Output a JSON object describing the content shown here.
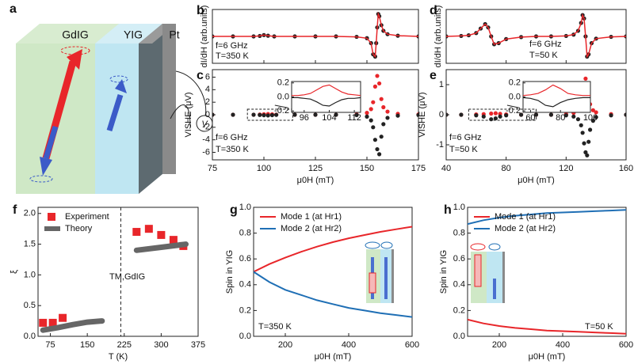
{
  "diagram": {
    "label": "a",
    "layers": [
      "GdIG",
      "YIG",
      "Pt"
    ],
    "meter": "V"
  },
  "chart_data": [
    {
      "type": "line",
      "label": "b",
      "ylabel": "dI/dH (arb.units)",
      "annotations": [
        "f=6 GHz",
        "T=350 K"
      ],
      "xlim": [
        75,
        175
      ],
      "xticks": [
        75,
        100,
        125,
        150,
        175
      ],
      "show_xtick_labels": false,
      "ylim": [
        -1.2,
        1.2
      ],
      "x": [
        75,
        85,
        95,
        98,
        100,
        102,
        105,
        115,
        125,
        135,
        145,
        150,
        152,
        153,
        154,
        154.5,
        155,
        155.5,
        156,
        157,
        158,
        160,
        165,
        175
      ],
      "series": [
        {
          "color": "#222222",
          "line_color": "#e8262a",
          "marker": "circle",
          "values": [
            0,
            0,
            0,
            0.02,
            0.06,
            0.03,
            0,
            0,
            0,
            0,
            -0.02,
            -0.08,
            -0.3,
            -0.8,
            -0.9,
            -0.3,
            0.4,
            1.0,
            0.9,
            0.5,
            0.25,
            0.1,
            0.03,
            0
          ]
        }
      ]
    },
    {
      "type": "line",
      "label": "c",
      "ylabel": "VISHE (μV)",
      "xlabel": "μ0H (mT)",
      "annotations": [
        "f=6 GHz",
        "T=350 K"
      ],
      "xlim": [
        75,
        175
      ],
      "xticks": [
        75,
        100,
        125,
        150,
        175
      ],
      "ylim": [
        -7.2,
        7.2
      ],
      "yticks": [
        -6,
        -4,
        -2,
        0,
        2,
        4,
        6
      ],
      "x": [
        75,
        85,
        95,
        98,
        100,
        102,
        104,
        106,
        115,
        125,
        135,
        145,
        150,
        152,
        153,
        154,
        155,
        156,
        157,
        158,
        160,
        165,
        175
      ],
      "series": [
        {
          "color": "#e8262a",
          "marker": "circle",
          "values": [
            0,
            0,
            0,
            0.03,
            0.08,
            0.12,
            0.06,
            0.02,
            0,
            0,
            0,
            0.05,
            0.3,
            0.9,
            2.0,
            4.5,
            6.2,
            5.0,
            2.5,
            1.2,
            0.5,
            0.15,
            0.05
          ]
        },
        {
          "color": "#222222",
          "marker": "circle",
          "values": [
            0,
            0,
            0,
            -0.03,
            -0.08,
            -0.12,
            -0.06,
            -0.02,
            0,
            0,
            0,
            -0.05,
            -0.3,
            -0.9,
            -2.0,
            -4.0,
            -5.5,
            -6.3,
            -3.5,
            -1.5,
            -0.5,
            -0.15,
            -0.05
          ]
        }
      ]
    },
    {
      "type": "line",
      "inset": true,
      "xlim": [
        92,
        114
      ],
      "xticks": [
        96,
        104,
        112
      ],
      "ylim": [
        -0.22,
        0.22
      ],
      "yticks": [
        -0.2,
        {
          "value": 0,
          "label": "0.0"
        },
        0.2
      ],
      "x": [
        92,
        94,
        96,
        98,
        100,
        102,
        104,
        106,
        108,
        110,
        112,
        114
      ],
      "series": [
        {
          "color": "#e8262a",
          "line_color": "#e8262a",
          "values": [
            0.02,
            0.02,
            0.03,
            0.05,
            0.1,
            0.15,
            0.17,
            0.12,
            0.07,
            0.04,
            0.03,
            0.02
          ]
        },
        {
          "color": "#222222",
          "line_color": "#222222",
          "values": [
            -0.01,
            -0.01,
            -0.02,
            -0.03,
            -0.07,
            -0.12,
            -0.13,
            -0.08,
            -0.04,
            -0.02,
            -0.02,
            -0.01
          ]
        }
      ]
    },
    {
      "type": "line",
      "label": "d",
      "ylabel": "dI/dH (arb.units)",
      "annotations": [
        "f=6 GHz",
        "T=50 K"
      ],
      "xlim": [
        40,
        160
      ],
      "xticks": [
        40,
        80,
        120,
        160
      ],
      "show_xtick_labels": false,
      "ylim": [
        -1.2,
        1.2
      ],
      "x": [
        40,
        50,
        55,
        60,
        63,
        66,
        68,
        70,
        72,
        75,
        80,
        90,
        100,
        110,
        120,
        125,
        128,
        130,
        131,
        132,
        133,
        134,
        135,
        137,
        140,
        150,
        160
      ],
      "series": [
        {
          "color": "#222222",
          "line_color": "#e8262a",
          "marker": "circle",
          "values": [
            0,
            0.02,
            0.05,
            0.15,
            0.35,
            0.55,
            0.4,
            0,
            -0.35,
            -0.3,
            -0.12,
            -0.03,
            0,
            0,
            0.02,
            0.08,
            0.25,
            0.6,
            0.95,
            0.8,
            0,
            -0.9,
            -0.8,
            -0.3,
            -0.1,
            -0.02,
            0
          ]
        }
      ]
    },
    {
      "type": "line",
      "label": "e",
      "ylabel": "VISHE (μV)",
      "xlabel": "μ0H (mT)",
      "annotations": [
        "f=6 GHz",
        "T=50 K"
      ],
      "xlim": [
        40,
        160
      ],
      "xticks": [
        40,
        80,
        120,
        160
      ],
      "ylim": [
        -1.5,
        1.5
      ],
      "yticks": [
        -1,
        0,
        1
      ],
      "x": [
        40,
        50,
        60,
        65,
        70,
        73,
        76,
        80,
        90,
        100,
        110,
        120,
        125,
        128,
        130,
        131,
        132,
        133,
        134,
        135,
        136,
        138,
        140,
        150,
        160
      ],
      "series": [
        {
          "color": "#e8262a",
          "marker": "circle",
          "values": [
            0,
            0,
            0.01,
            0.02,
            0.04,
            0.05,
            0.03,
            0.01,
            0,
            0,
            0,
            0.02,
            0.06,
            0.15,
            0.35,
            0.6,
            0.95,
            1.2,
            1.0,
            0.6,
            0.35,
            0.15,
            0.08,
            0.02,
            0
          ]
        },
        {
          "color": "#222222",
          "marker": "circle",
          "values": [
            0,
            0,
            -0.02,
            -0.06,
            -0.15,
            -0.12,
            -0.06,
            -0.02,
            0,
            0,
            0,
            -0.02,
            -0.06,
            -0.15,
            -0.35,
            -0.6,
            -0.95,
            -1.25,
            -1.35,
            -0.9,
            -0.5,
            -0.2,
            -0.08,
            -0.02,
            0
          ]
        }
      ]
    },
    {
      "type": "line",
      "inset": true,
      "xlim": [
        55,
        100
      ],
      "xticks": [
        60,
        80,
        100
      ],
      "ylim": [
        -0.22,
        0.22
      ],
      "yticks": [
        -0.2,
        {
          "value": 0,
          "label": "0.0"
        },
        0.2
      ],
      "x": [
        55,
        60,
        65,
        70,
        75,
        80,
        85,
        90,
        95,
        100
      ],
      "series": [
        {
          "color": "#e8262a",
          "line_color": "#e8262a",
          "values": [
            0.02,
            0.03,
            0.05,
            0.1,
            0.17,
            0.12,
            0.05,
            0.03,
            0.02,
            0.02
          ]
        },
        {
          "color": "#222222",
          "line_color": "#222222",
          "values": [
            -0.01,
            -0.02,
            -0.05,
            -0.12,
            -0.14,
            -0.08,
            -0.04,
            -0.02,
            -0.01,
            -0.01
          ]
        }
      ]
    },
    {
      "type": "line",
      "label": "f",
      "ylabel": "ξ",
      "xlabel": "T (K)",
      "annotations": [
        "TM,GdIG"
      ],
      "vline": 218,
      "legend": "upper left",
      "xlim": [
        50,
        375
      ],
      "xticks": [
        75,
        150,
        225,
        300,
        375
      ],
      "ylim": [
        0,
        2.1
      ],
      "yticks": [
        {
          "value": 0,
          "label": "0.0"
        },
        0.5,
        {
          "value": 1,
          "label": "1.0"
        },
        1.5,
        {
          "value": 2,
          "label": "2.0"
        }
      ],
      "series": [
        {
          "name": "Experiment",
          "color": "#e8262a",
          "marker": "square",
          "x": [
            60,
            80,
            100,
            250,
            275,
            300,
            325,
            345
          ],
          "values": [
            0.22,
            0.22,
            0.3,
            1.7,
            1.75,
            1.65,
            1.57,
            1.47
          ]
        },
        {
          "name": "Theory",
          "line_color": "#666666",
          "line_width": 7,
          "x": [
            60,
            90,
            120,
            150,
            180,
            215,
            250,
            300,
            350
          ],
          "values": [
            0.1,
            0.14,
            0.19,
            0.23,
            0.25,
            null,
            1.4,
            1.45,
            1.5
          ]
        }
      ]
    },
    {
      "type": "line",
      "label": "g",
      "ylabel": "Spin in YIG",
      "xlabel": "μ0H (mT)",
      "annotations": [
        "T=350 K"
      ],
      "legend": "upper left",
      "xlim": [
        100,
        600
      ],
      "xticks": [
        200,
        400,
        600
      ],
      "ylim": [
        0,
        1
      ],
      "yticks": [
        {
          "value": 0,
          "label": "0.0"
        },
        0.2,
        0.4,
        0.6,
        0.8,
        {
          "value": 1,
          "label": "1.0"
        }
      ],
      "x": [
        100,
        150,
        200,
        250,
        300,
        350,
        400,
        450,
        500,
        550,
        600
      ],
      "series": [
        {
          "name": "Mode 1 (at Hr1)",
          "line_color": "#e8262a",
          "line_width": 2,
          "values": [
            0.5,
            0.56,
            0.61,
            0.655,
            0.695,
            0.73,
            0.76,
            0.785,
            0.81,
            0.83,
            0.85
          ]
        },
        {
          "name": "Mode 2 (at Hr2)",
          "line_color": "#1f6fb5",
          "line_width": 2,
          "values": [
            0.5,
            0.42,
            0.36,
            0.32,
            0.28,
            0.25,
            0.22,
            0.2,
            0.18,
            0.165,
            0.15
          ]
        }
      ]
    },
    {
      "type": "line",
      "label": "h",
      "ylabel": "Spin in YIG",
      "xlabel": "μ0H (mT)",
      "annotations": [
        "T=50 K"
      ],
      "legend": "upper left",
      "xlim": [
        100,
        600
      ],
      "xticks": [
        200,
        400,
        600
      ],
      "ylim": [
        0,
        1
      ],
      "yticks": [
        {
          "value": 0,
          "label": "0.0"
        },
        0.2,
        0.4,
        0.6,
        0.8,
        {
          "value": 1,
          "label": "1.0"
        }
      ],
      "x": [
        100,
        150,
        200,
        250,
        300,
        350,
        400,
        450,
        500,
        550,
        600
      ],
      "series": [
        {
          "name": "Mode 1 (at Hr1)",
          "line_color": "#e8262a",
          "line_width": 2,
          "values": [
            0.13,
            0.1,
            0.08,
            0.065,
            0.055,
            0.045,
            0.04,
            0.035,
            0.03,
            0.025,
            0.02
          ]
        },
        {
          "name": "Mode 2 (at Hr2)",
          "line_color": "#1f6fb5",
          "line_width": 2,
          "values": [
            0.87,
            0.9,
            0.92,
            0.935,
            0.945,
            0.955,
            0.96,
            0.965,
            0.97,
            0.975,
            0.98
          ]
        }
      ]
    }
  ]
}
